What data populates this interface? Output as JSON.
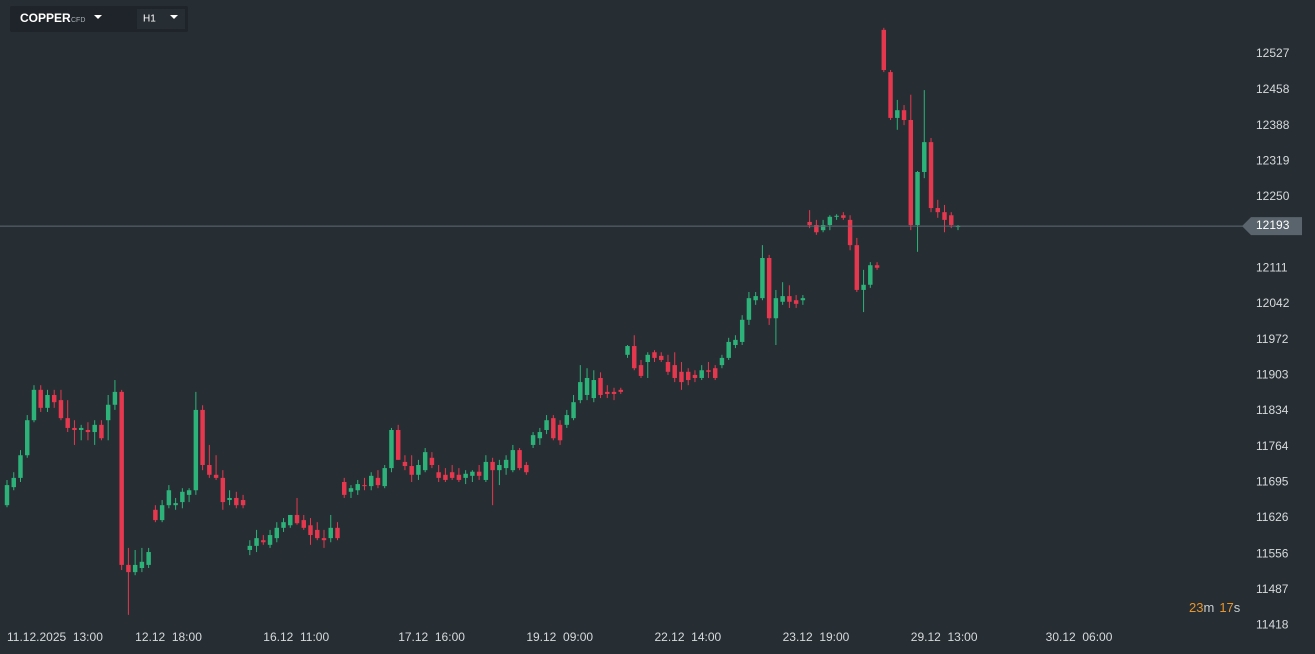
{
  "header": {
    "symbol": "COPPER",
    "symbol_tag": "CFD",
    "timeframe": "H1"
  },
  "countdown": {
    "minutes": "23",
    "minutes_unit": "m",
    "seconds": "17",
    "seconds_unit": "s"
  },
  "chart_data": {
    "type": "candlestick",
    "up_color": "#2db37a",
    "down_color": "#e5384f",
    "last_price": 12193,
    "xlim": [
      0,
      141
    ],
    "xticks": [
      {
        "value": 0,
        "label": "11.12.2025  13:00"
      },
      {
        "value": 19,
        "label": "12.12  18:00"
      },
      {
        "value": 38,
        "label": "16.12  11:00"
      },
      {
        "value": 58,
        "label": "17.12  16:00"
      },
      {
        "value": 77,
        "label": "19.12  09:00"
      },
      {
        "value": 96,
        "label": "22.12  14:00"
      },
      {
        "value": 115,
        "label": "23.12  19:00"
      },
      {
        "value": 134,
        "label": "29.12  13:00"
      },
      {
        "value": 154,
        "label": "30.12  06:00"
      }
    ],
    "ylim": [
      11362,
      12632
    ],
    "yticks": [
      11418,
      11487,
      11556,
      11626,
      11695,
      11764,
      11834,
      11903,
      11972,
      12042,
      12111,
      12250,
      12319,
      12388,
      12458,
      12527
    ],
    "ohlc": [
      [
        11651,
        11700,
        11647,
        11690
      ],
      [
        11686,
        11715,
        11680,
        11704
      ],
      [
        11704,
        11758,
        11696,
        11748
      ],
      [
        11748,
        11826,
        11743,
        11816
      ],
      [
        11816,
        11884,
        11812,
        11875
      ],
      [
        11875,
        11884,
        11832,
        11840
      ],
      [
        11840,
        11875,
        11832,
        11865
      ],
      [
        11865,
        11875,
        11840,
        11851
      ],
      [
        11855,
        11875,
        11816,
        11820
      ],
      [
        11820,
        11855,
        11793,
        11801
      ],
      [
        11801,
        11816,
        11768,
        11797
      ],
      [
        11797,
        11807,
        11777,
        11801
      ],
      [
        11797,
        11812,
        11777,
        11793
      ],
      [
        11793,
        11816,
        11768,
        11807
      ],
      [
        11807,
        11816,
        11777,
        11781
      ],
      [
        11816,
        11865,
        11777,
        11846
      ],
      [
        11846,
        11894,
        11836,
        11871
      ],
      [
        11871,
        11875,
        11525,
        11535
      ],
      [
        11535,
        11568,
        11438,
        11521
      ],
      [
        11521,
        11564,
        11515,
        11535
      ],
      [
        11529,
        11568,
        11521,
        11541
      ],
      [
        11535,
        11568,
        11529,
        11560
      ],
      [
        11642,
        11651,
        11618,
        11622
      ],
      [
        11622,
        11661,
        11618,
        11651
      ],
      [
        11651,
        11690,
        11645,
        11680
      ],
      [
        11651,
        11665,
        11642,
        11655
      ],
      [
        11657,
        11684,
        11645,
        11677
      ],
      [
        11671,
        11684,
        11657,
        11680
      ],
      [
        11680,
        11871,
        11671,
        11836
      ],
      [
        11836,
        11845,
        11719,
        11729
      ],
      [
        11729,
        11768,
        11704,
        11710
      ],
      [
        11710,
        11748,
        11700,
        11704
      ],
      [
        11704,
        11719,
        11642,
        11657
      ],
      [
        11661,
        11680,
        11651,
        11665
      ],
      [
        11665,
        11677,
        11645,
        11651
      ],
      [
        11661,
        11671,
        11645,
        11651
      ],
      [
        11564,
        11583,
        11554,
        11572
      ],
      [
        11572,
        11603,
        11560,
        11587
      ],
      [
        11583,
        11593,
        11574,
        11579
      ],
      [
        11574,
        11603,
        11568,
        11593
      ],
      [
        11587,
        11618,
        11579,
        11607
      ],
      [
        11607,
        11626,
        11599,
        11618
      ],
      [
        11612,
        11632,
        11607,
        11632
      ],
      [
        11632,
        11665,
        11613,
        11616
      ],
      [
        11622,
        11632,
        11603,
        11607
      ],
      [
        11612,
        11626,
        11574,
        11593
      ],
      [
        11603,
        11618,
        11583,
        11587
      ],
      [
        11587,
        11603,
        11568,
        11583
      ],
      [
        11587,
        11632,
        11579,
        11607
      ],
      [
        11607,
        11618,
        11583,
        11587
      ],
      [
        11696,
        11704,
        11665,
        11671
      ],
      [
        11677,
        11690,
        11665,
        11684
      ],
      [
        11680,
        11700,
        11671,
        11692
      ],
      [
        11690,
        11704,
        11680,
        11688
      ],
      [
        11688,
        11715,
        11680,
        11708
      ],
      [
        11704,
        11719,
        11684,
        11690
      ],
      [
        11688,
        11729,
        11684,
        11723
      ],
      [
        11723,
        11801,
        11715,
        11797
      ],
      [
        11797,
        11807,
        11739,
        11739
      ],
      [
        11735,
        11748,
        11719,
        11727
      ],
      [
        11727,
        11748,
        11696,
        11710
      ],
      [
        11710,
        11739,
        11700,
        11729
      ],
      [
        11719,
        11762,
        11715,
        11754
      ],
      [
        11743,
        11754,
        11723,
        11729
      ],
      [
        11715,
        11729,
        11696,
        11704
      ],
      [
        11710,
        11723,
        11696,
        11700
      ],
      [
        11715,
        11729,
        11700,
        11704
      ],
      [
        11710,
        11723,
        11696,
        11700
      ],
      [
        11704,
        11719,
        11692,
        11712
      ],
      [
        11708,
        11719,
        11696,
        11716
      ],
      [
        11716,
        11729,
        11700,
        11708
      ],
      [
        11700,
        11748,
        11696,
        11735
      ],
      [
        11735,
        11743,
        11651,
        11719
      ],
      [
        11719,
        11739,
        11690,
        11729
      ],
      [
        11723,
        11748,
        11710,
        11739
      ],
      [
        11719,
        11768,
        11715,
        11758
      ],
      [
        11758,
        11762,
        11719,
        11723
      ],
      [
        11729,
        11735,
        11710,
        11715
      ],
      [
        11768,
        11793,
        11762,
        11787
      ],
      [
        11781,
        11801,
        11768,
        11793
      ],
      [
        11797,
        11826,
        11789,
        11816
      ],
      [
        11820,
        11826,
        11777,
        11781
      ],
      [
        11807,
        11816,
        11768,
        11777
      ],
      [
        11807,
        11836,
        11801,
        11826
      ],
      [
        11820,
        11865,
        11816,
        11851
      ],
      [
        11855,
        11923,
        11849,
        11890
      ],
      [
        11865,
        11917,
        11855,
        11898
      ],
      [
        11859,
        11913,
        11851,
        11894
      ],
      [
        11898,
        11909,
        11859,
        11865
      ],
      [
        11871,
        11884,
        11859,
        11867
      ],
      [
        11871,
        11879,
        11855,
        11867
      ],
      [
        11875,
        11879,
        11867,
        11871
      ],
      [
        11943,
        11962,
        11937,
        11960
      ],
      [
        11960,
        11981,
        11913,
        11917
      ],
      [
        11923,
        11933,
        11898,
        11902
      ],
      [
        11929,
        11948,
        11898,
        11943
      ],
      [
        11948,
        11952,
        11929,
        11937
      ],
      [
        11941,
        11948,
        11929,
        11933
      ],
      [
        11929,
        11943,
        11904,
        11910
      ],
      [
        11923,
        11948,
        11890,
        11898
      ],
      [
        11910,
        11929,
        11875,
        11890
      ],
      [
        11910,
        11917,
        11884,
        11894
      ],
      [
        11904,
        11913,
        11890,
        11898
      ],
      [
        11898,
        11923,
        11894,
        11913
      ],
      [
        11913,
        11929,
        11898,
        11910
      ],
      [
        11917,
        11923,
        11894,
        11898
      ],
      [
        11923,
        11943,
        11917,
        11937
      ],
      [
        11937,
        11976,
        11933,
        11968
      ],
      [
        11962,
        11981,
        11956,
        11972
      ],
      [
        11968,
        12020,
        11962,
        12011
      ],
      [
        12011,
        12065,
        12001,
        12053
      ],
      [
        12049,
        12065,
        12040,
        12057
      ],
      [
        12053,
        12156,
        12049,
        12131
      ],
      [
        12131,
        12137,
        12001,
        12014
      ],
      [
        12014,
        12069,
        11962,
        12053
      ],
      [
        12046,
        12084,
        12040,
        12057
      ],
      [
        12057,
        12078,
        12034,
        12046
      ],
      [
        12049,
        12059,
        12034,
        12042
      ],
      [
        12049,
        12059,
        12040,
        12053
      ],
      [
        12201,
        12224,
        12189,
        12195
      ],
      [
        12195,
        12205,
        12176,
        12181
      ],
      [
        12185,
        12205,
        12181,
        12195
      ],
      [
        12195,
        12214,
        12185,
        12211
      ],
      [
        12211,
        12216,
        12205,
        12213
      ],
      [
        12214,
        12220,
        12205,
        12209
      ],
      [
        12205,
        12214,
        12146,
        12156
      ],
      [
        12156,
        12170,
        12065,
        12069
      ],
      [
        12069,
        12108,
        12026,
        12079
      ],
      [
        12079,
        12123,
        12073,
        12117
      ],
      [
        12117,
        12123,
        12108,
        12112
      ],
      [
        12574,
        12578,
        12492,
        12496
      ],
      [
        12492,
        12496,
        12399,
        12403
      ],
      [
        12403,
        12438,
        12380,
        12418
      ],
      [
        12418,
        12428,
        12389,
        12399
      ],
      [
        12399,
        12448,
        12185,
        12195
      ],
      [
        12195,
        12300,
        12143,
        12298
      ],
      [
        12298,
        12457,
        12286,
        12356
      ],
      [
        12356,
        12364,
        12220,
        12228
      ],
      [
        12228,
        12244,
        12209,
        12220
      ],
      [
        12220,
        12234,
        12181,
        12205
      ],
      [
        12214,
        12220,
        12189,
        12195
      ],
      [
        12193,
        12195,
        12185,
        12193
      ]
    ]
  }
}
